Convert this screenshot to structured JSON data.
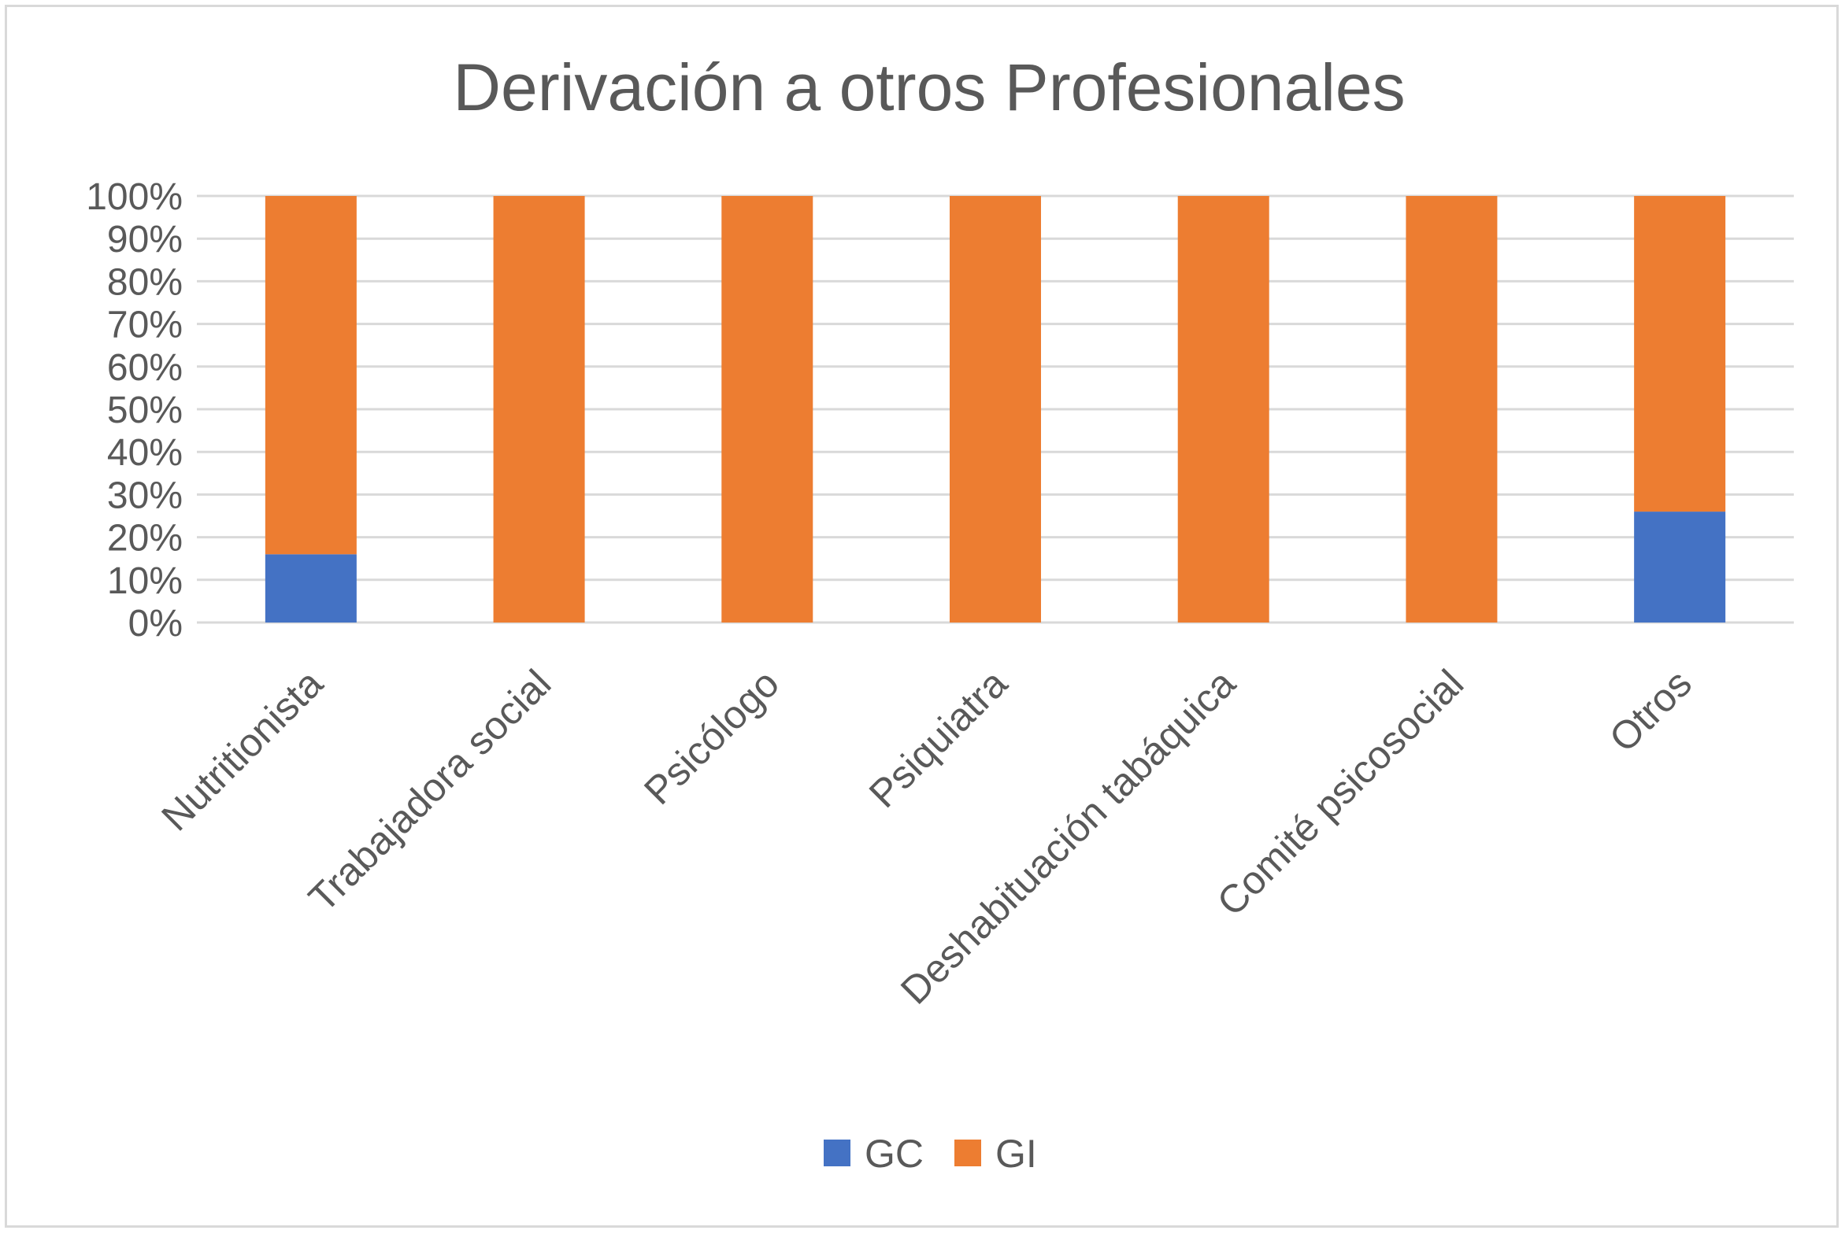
{
  "chart_data": {
    "type": "bar",
    "stacked": true,
    "stack_mode": "percent",
    "title": "Derivación a otros Profesionales",
    "xlabel": "",
    "ylabel": "",
    "ylim": [
      0,
      100
    ],
    "y_ticks": [
      "0%",
      "10%",
      "20%",
      "30%",
      "40%",
      "50%",
      "60%",
      "70%",
      "80%",
      "90%",
      "100%"
    ],
    "categories": [
      "Nutritionista",
      "Trabajadora social",
      "Psicólogo",
      "Psiquiatra",
      "Deshabituación tabáquica",
      "Comité psicosocial",
      "Otros"
    ],
    "series": [
      {
        "name": "GC",
        "color": "#4472c4",
        "values": [
          16,
          0,
          0,
          0,
          0,
          0,
          26
        ]
      },
      {
        "name": "GI",
        "color": "#ed7d31",
        "values": [
          84,
          100,
          100,
          100,
          100,
          100,
          74
        ]
      }
    ],
    "grid": true,
    "legend_position": "bottom"
  }
}
